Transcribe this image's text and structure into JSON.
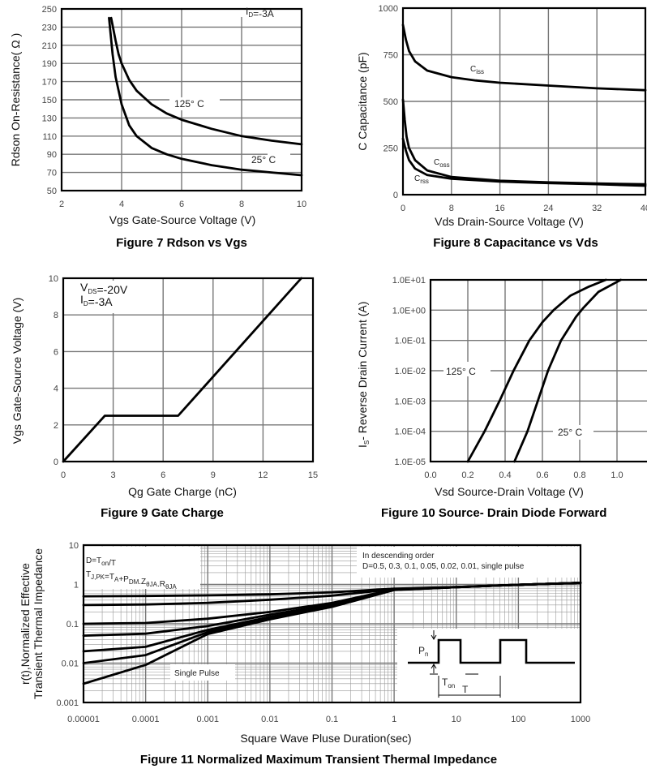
{
  "chart_data": [
    {
      "type": "line",
      "title": "Figure 7 Rdson vs Vgs",
      "xlabel": "Vgs Gate-Source Voltage (V)",
      "ylabel": "Rdson On-Resistance( Ω )",
      "xlim": [
        2,
        10
      ],
      "ylim": [
        50,
        250
      ],
      "xticks": [
        "2",
        "4",
        "6",
        "8",
        "10"
      ],
      "yticks": [
        "50",
        "70",
        "90",
        "110",
        "130",
        "150",
        "170",
        "190",
        "210",
        "230",
        "250"
      ],
      "grid": true,
      "annotations": {
        "id_main": "I",
        "id_sub": "D",
        "id_rest": "=-3A",
        "hot": "125° C",
        "cold": "25° C"
      },
      "series": [
        {
          "name": "125° C",
          "points": [
            [
              3.65,
              240
            ],
            [
              3.8,
              215
            ],
            [
              3.9,
              200
            ],
            [
              4,
              190
            ],
            [
              4.25,
              172
            ],
            [
              4.5,
              160
            ],
            [
              5,
              145
            ],
            [
              5.5,
              135
            ],
            [
              6,
              128
            ],
            [
              7,
              118
            ],
            [
              8,
              110
            ],
            [
              9,
              105
            ],
            [
              10,
              101
            ]
          ]
        },
        {
          "name": "25° C",
          "points": [
            [
              3.58,
              240
            ],
            [
              3.7,
              200
            ],
            [
              3.8,
              175
            ],
            [
              4,
              145
            ],
            [
              4.25,
              122
            ],
            [
              4.5,
              110
            ],
            [
              5,
              97
            ],
            [
              5.5,
              90
            ],
            [
              6,
              85
            ],
            [
              7,
              78
            ],
            [
              8,
              73
            ],
            [
              9,
              70
            ],
            [
              10,
              67
            ]
          ]
        }
      ]
    },
    {
      "type": "line",
      "title": "Figure 8 Capacitance vs Vds",
      "xlabel": "Vds Drain-Source Voltage (V)",
      "ylabel": "C Capacitance (pF)",
      "xlim": [
        0,
        40
      ],
      "ylim": [
        0,
        1000
      ],
      "xticks": [
        "0",
        "8",
        "16",
        "24",
        "32",
        "40"
      ],
      "yticks": [
        "0",
        "250",
        "500",
        "750",
        "1000"
      ],
      "grid": true,
      "annotations": {
        "ciss_main": "C",
        "ciss_sub": "iss",
        "coss_main": "C",
        "coss_sub": "oss",
        "crss_main": "C",
        "crss_sub": "rss"
      },
      "series": [
        {
          "name": "Ciss",
          "points": [
            [
              0,
              910
            ],
            [
              0.5,
              830
            ],
            [
              1,
              770
            ],
            [
              2,
              715
            ],
            [
              4,
              665
            ],
            [
              8,
              630
            ],
            [
              12,
              612
            ],
            [
              16,
              600
            ],
            [
              24,
              585
            ],
            [
              32,
              570
            ],
            [
              40,
              560
            ]
          ]
        },
        {
          "name": "Coss",
          "points": [
            [
              0,
              510
            ],
            [
              0.3,
              400
            ],
            [
              0.6,
              310
            ],
            [
              1,
              250
            ],
            [
              2,
              185
            ],
            [
              4,
              130
            ],
            [
              8,
              95
            ],
            [
              16,
              75
            ],
            [
              24,
              66
            ],
            [
              32,
              60
            ],
            [
              40,
              56
            ]
          ]
        },
        {
          "name": "Crss",
          "points": [
            [
              0,
              300
            ],
            [
              0.5,
              235
            ],
            [
              1,
              185
            ],
            [
              2,
              140
            ],
            [
              4,
              105
            ],
            [
              8,
              85
            ],
            [
              16,
              70
            ],
            [
              24,
              62
            ],
            [
              32,
              56
            ],
            [
              40,
              48
            ]
          ]
        }
      ]
    },
    {
      "type": "line",
      "title": "Figure 9 Gate Charge",
      "xlabel": "Qg Gate Charge (nC)",
      "ylabel": "Vgs Gate-Source Voltage (V)",
      "xlim": [
        0,
        15
      ],
      "ylim": [
        0,
        10
      ],
      "xticks": [
        "0",
        "3",
        "6",
        "9",
        "12",
        "15"
      ],
      "yticks": [
        "0",
        "2",
        "4",
        "6",
        "8",
        "10"
      ],
      "grid": true,
      "annotations": {
        "vds_main": "V",
        "vds_sub": "DS",
        "vds_rest": "=-20V",
        "id_main": "I",
        "id_sub": "D",
        "id_rest": "=-3A"
      },
      "series": [
        {
          "points": [
            [
              0,
              0
            ],
            [
              2.5,
              2.5
            ],
            [
              6.9,
              2.5
            ],
            [
              14.3,
              10
            ]
          ]
        }
      ]
    },
    {
      "type": "line",
      "title": "Figure 10 Source- Drain Diode Forward",
      "xlabel": "Vsd Source-Drain Voltage (V)",
      "ylabel_main": "I",
      "ylabel_sub": "S",
      "ylabel_rest": "- Reverse Drain Current (A)",
      "xlim": [
        0,
        1.2
      ],
      "ylim": [
        1e-05,
        10
      ],
      "yscale": "log",
      "xticks": [
        "0.0",
        "0.2",
        "0.4",
        "0.6",
        "0.8",
        "1.0",
        "1.2"
      ],
      "yticks": [
        "1.0E-05",
        "1.0E-04",
        "1.0E-03",
        "1.0E-02",
        "1.0E-01",
        "1.0E+00",
        "1.0E+01"
      ],
      "grid": true,
      "annotations": {
        "hot": "125° C",
        "cold": "25° C"
      },
      "series": [
        {
          "name": "125° C",
          "points": [
            [
              0.2,
              1e-05
            ],
            [
              0.29,
              0.0001
            ],
            [
              0.37,
              0.001
            ],
            [
              0.445,
              0.01
            ],
            [
              0.53,
              0.1
            ],
            [
              0.6,
              0.4
            ],
            [
              0.66,
              1
            ],
            [
              0.75,
              3
            ],
            [
              0.85,
              6
            ],
            [
              0.94,
              10
            ]
          ]
        },
        {
          "name": "25° C",
          "points": [
            [
              0.45,
              1e-05
            ],
            [
              0.52,
              0.0001
            ],
            [
              0.575,
              0.001
            ],
            [
              0.63,
              0.01
            ],
            [
              0.7,
              0.1
            ],
            [
              0.78,
              0.6
            ],
            [
              0.82,
              1.2
            ],
            [
              0.9,
              4
            ],
            [
              1.02,
              10
            ]
          ]
        }
      ]
    },
    {
      "type": "line",
      "title": "Figure 11 Normalized Maximum Transient Thermal Impedance",
      "xlabel": "Square Wave Pluse Duration(sec)",
      "ylabel": [
        "r(t),Normalized Effective",
        "Transient Thermal Impedance"
      ],
      "xlim": [
        1e-05,
        1000
      ],
      "ylim": [
        0.001,
        10
      ],
      "xscale": "log",
      "yscale": "log",
      "xticks": [
        "0.00001",
        "0.0001",
        "0.001",
        "0.01",
        "0.1",
        "1",
        "10",
        "100",
        "1000"
      ],
      "yticks": [
        "0.001",
        "0.01",
        "0.1",
        "1",
        "10"
      ],
      "grid": true,
      "annotations": {
        "d_main": "D=T",
        "d_sub": "on",
        "d_rest": "/T",
        "tj_a": "T",
        "tj_a_sub": "J,PK",
        "tj_b": "=T",
        "tj_b_sub": "A",
        "tj_c": "+P",
        "tj_c_sub": "DM",
        "tj_d": ".Z",
        "tj_d_sub": "θJA",
        "tj_e": ".R",
        "tj_e_sub": "θJA",
        "order_line1": "In descending order",
        "order_line2": "D=0.5, 0.3, 0.1, 0.05, 0.02, 0.01, single pulse",
        "single_pulse": "Single Pulse",
        "inset_p_main": "P",
        "inset_p_sub": "n",
        "inset_ton_main": "T",
        "inset_ton_sub": "on",
        "inset_t": "T"
      },
      "x": [
        1e-05,
        0.0001,
        0.001,
        0.01,
        0.1,
        1,
        10,
        100,
        1000
      ],
      "series": [
        {
          "name": "D=0.5",
          "values": [
            0.5,
            0.51,
            0.53,
            0.56,
            0.63,
            0.78,
            0.86,
            0.98,
            1.1
          ]
        },
        {
          "name": "D=0.3",
          "values": [
            0.3,
            0.31,
            0.34,
            0.41,
            0.52,
            0.76,
            0.86,
            0.98,
            1.1
          ]
        },
        {
          "name": "D=0.1",
          "values": [
            0.1,
            0.105,
            0.135,
            0.2,
            0.34,
            0.75,
            0.85,
            0.98,
            1.1
          ]
        },
        {
          "name": "D=0.05",
          "values": [
            0.05,
            0.056,
            0.088,
            0.17,
            0.31,
            0.74,
            0.85,
            0.98,
            1.1
          ]
        },
        {
          "name": "D=0.02",
          "values": [
            0.02,
            0.026,
            0.07,
            0.15,
            0.29,
            0.73,
            0.85,
            0.98,
            1.1
          ]
        },
        {
          "name": "D=0.01",
          "values": [
            0.01,
            0.016,
            0.062,
            0.14,
            0.28,
            0.73,
            0.85,
            0.98,
            1.1
          ]
        },
        {
          "name": "single pulse",
          "values": [
            0.003,
            0.009,
            0.055,
            0.13,
            0.27,
            0.72,
            0.85,
            0.98,
            1.1
          ]
        }
      ]
    }
  ]
}
